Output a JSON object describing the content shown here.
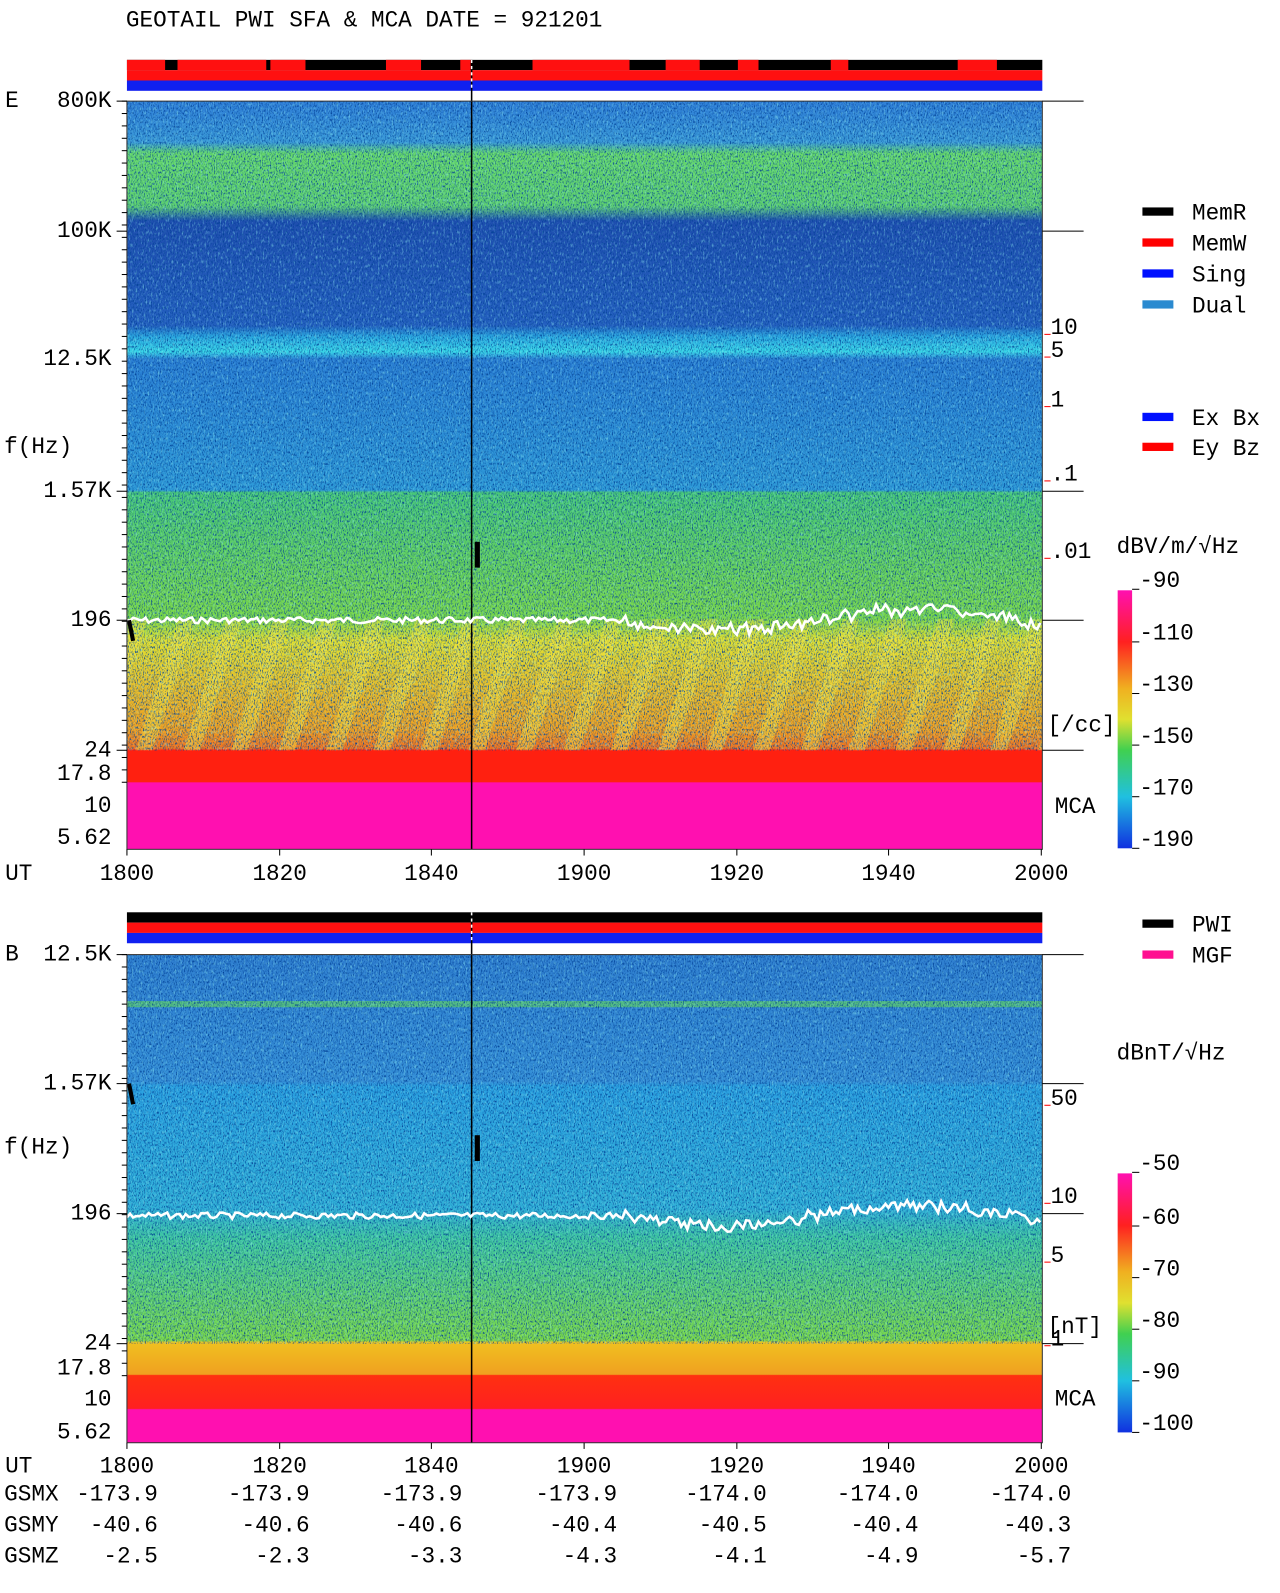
{
  "title": "GEOTAIL  PWI SFA & MCA   DATE = 921201",
  "panels": [
    {
      "name": "E",
      "freq_labels": [
        "800K",
        "100K",
        "12.5K",
        "1.57K",
        "196",
        "24",
        "17.8",
        "10",
        "5.62"
      ],
      "ylabel": "f(Hz)",
      "x_axis_label": "UT",
      "time_labels": [
        "1800",
        "1820",
        "1840",
        "1900",
        "1920",
        "1940",
        "2000"
      ],
      "right_labels": [
        "10",
        "5",
        "1",
        ".1",
        ".01"
      ],
      "unit_label": "[/cc]",
      "mca_label": "MCA",
      "colorbar_label": "dBV/m/√Hz",
      "colorbar_ticks": [
        "-90",
        "-110",
        "-130",
        "-150",
        "-170",
        "-190"
      ]
    },
    {
      "name": "B",
      "freq_labels": [
        "12.5K",
        "1.57K",
        "196",
        "24",
        "17.8",
        "10",
        "5.62"
      ],
      "ylabel": "f(Hz)",
      "x_axis_label": "UT",
      "time_labels": [
        "1800",
        "1820",
        "1840",
        "1900",
        "1920",
        "1940",
        "2000"
      ],
      "right_labels": [
        "50",
        "10",
        "5",
        "1"
      ],
      "unit_label": "[nT]",
      "mca_label": "MCA",
      "colorbar_label": "dBnT/√Hz",
      "colorbar_ticks": [
        "-50",
        "-60",
        "-70",
        "-80",
        "-90",
        "-100"
      ]
    }
  ],
  "legends": {
    "mode": [
      "MemR",
      "MemW",
      "Sing",
      "Dual"
    ],
    "antenna": [
      "Ex Bx",
      "Ey Bz"
    ],
    "source": [
      "PWI",
      "MGF"
    ]
  },
  "position_table": {
    "rows": [
      {
        "label": "GSMX",
        "values": [
          "-173.9",
          "-173.9",
          "-173.9",
          "-173.9",
          "-174.0",
          "-174.0",
          "-174.0"
        ]
      },
      {
        "label": "GSMY",
        "values": [
          "-40.6",
          "-40.6",
          "-40.6",
          "-40.4",
          "-40.5",
          "-40.4",
          "-40.3"
        ]
      },
      {
        "label": "GSMZ",
        "values": [
          "-2.5",
          "-2.3",
          "-3.3",
          "-4.3",
          "-4.1",
          "-4.9",
          "-5.7"
        ]
      }
    ]
  }
}
